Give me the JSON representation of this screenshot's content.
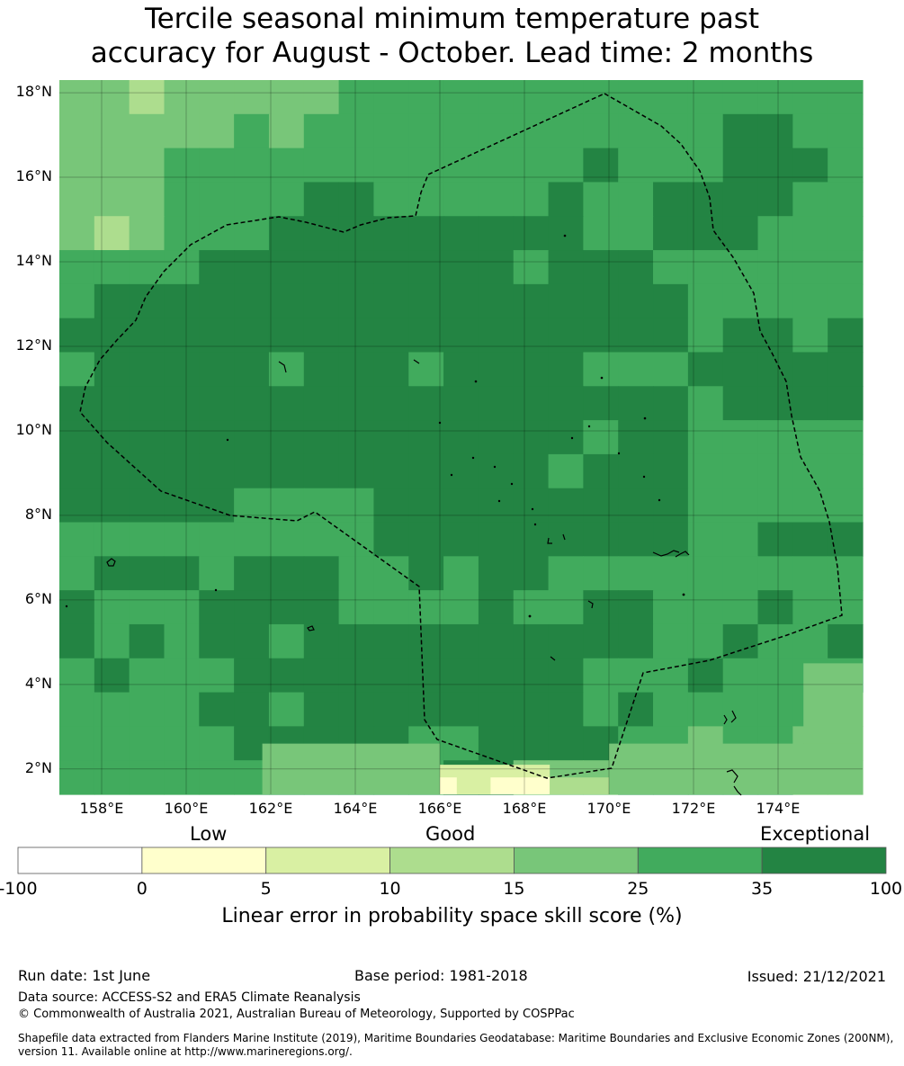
{
  "title": {
    "line1": "Tercile seasonal minimum temperature past",
    "line2": "accuracy for August - October. Lead time: 2 months"
  },
  "map": {
    "lat_labels": [
      "18°N",
      "16°N",
      "14°N",
      "12°N",
      "10°N",
      "8°N",
      "6°N",
      "4°N",
      "2°N"
    ],
    "lon_labels": [
      "158°E",
      "160°E",
      "162°E",
      "164°E",
      "166°E",
      "168°E",
      "170°E",
      "172°E",
      "174°E"
    ],
    "lat_values": [
      18,
      16,
      14,
      12,
      10,
      8,
      6,
      4,
      2
    ],
    "lon_values": [
      158,
      160,
      162,
      164,
      166,
      168,
      170,
      172,
      174
    ],
    "lon_range": [
      157,
      176
    ],
    "lat_range": [
      1.4,
      18.3
    ],
    "grid": true,
    "colors": {
      "c0": "#ffffcc",
      "c1": "#d9f0a3",
      "c2": "#addd8e",
      "c3": "#78c679",
      "c4": "#41ab5d",
      "c5": "#238443"
    }
  },
  "colorbar": {
    "category_labels": [
      "Low",
      "Good",
      "Exceptional"
    ],
    "ticks": [
      "-100",
      "0",
      "5",
      "10",
      "15",
      "25",
      "35",
      "100"
    ],
    "colors": [
      "#ffffff",
      "#ffffcc",
      "#d9f0a3",
      "#addd8e",
      "#78c679",
      "#41ab5d",
      "#238443"
    ],
    "title": "Linear error in probability space skill score (%)"
  },
  "footer": {
    "run_date": "Run date: 1st June",
    "base_period": "Base period: 1981-2018",
    "issued": "Issued: 21/12/2021",
    "data_source": "Data source: ACCESS-S2 and ERA5 Climate Reanalysis",
    "copyright": "© Commonwealth of Australia 2021, Australian Bureau of Meteorology, Supported by COSPPac",
    "shapefile_1": "Shapefile data extracted from Flanders Marine Institute (2019), Maritime Boundaries Geodatabase: Maritime Boundaries and Exclusive Economic Zones (200NM),",
    "shapefile_2": "version 11. Available online at http://www.marineregions.org/."
  }
}
